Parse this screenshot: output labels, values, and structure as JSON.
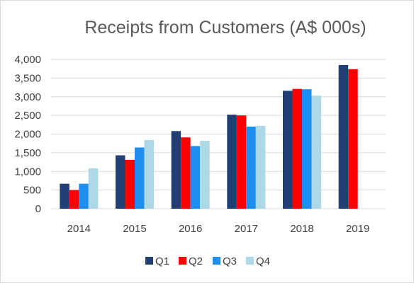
{
  "chart_data": {
    "type": "bar",
    "title": "Receipts from Customers (A$ 000s)",
    "categories": [
      "2014",
      "2015",
      "2016",
      "2017",
      "2018",
      "2019"
    ],
    "series": [
      {
        "name": "Q1",
        "color": "#1f3f75",
        "values": [
          670,
          1430,
          2080,
          2520,
          3160,
          3850
        ]
      },
      {
        "name": "Q2",
        "color": "#ff0000",
        "values": [
          500,
          1310,
          1910,
          2500,
          3210,
          3740
        ]
      },
      {
        "name": "Q3",
        "color": "#1f8fef",
        "values": [
          670,
          1640,
          1680,
          2200,
          3200,
          null
        ]
      },
      {
        "name": "Q4",
        "color": "#add8e6",
        "values": [
          1080,
          1840,
          1820,
          2220,
          3030,
          null
        ]
      }
    ],
    "y_ticks": [
      "0",
      "500",
      "1,000",
      "1,500",
      "2,000",
      "2,500",
      "3,000",
      "3,500",
      "4,000"
    ],
    "ylim": [
      0,
      4000
    ],
    "grid": true,
    "legend": "bottom"
  }
}
